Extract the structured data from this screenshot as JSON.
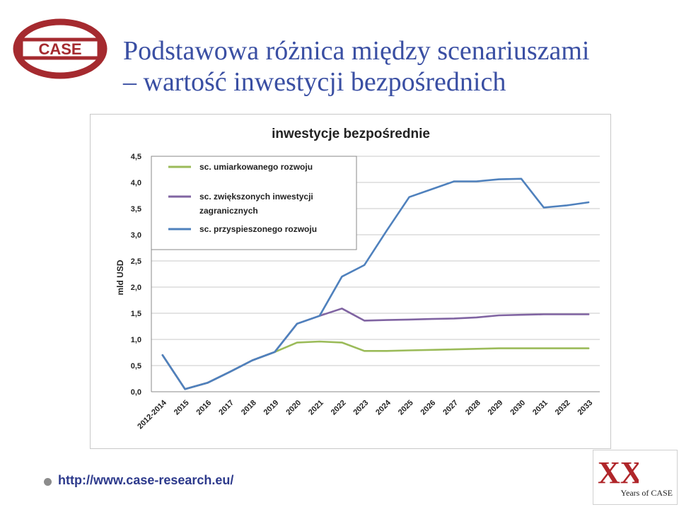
{
  "slide": {
    "title_line1": "Podstawowa różnica między scenariuszami",
    "title_line2": "– wartość inwestycji bezpośrednich",
    "footer_link": "http://www.case-research.eu/",
    "logo_text": "CASE",
    "badge_text": "Years of CASE",
    "badge_mark": "XX",
    "colors": {
      "title": "#3a4fa3",
      "logo": "#a52a2f",
      "link": "#2d3a8c"
    }
  },
  "chart_data": {
    "type": "line",
    "title": "inwestycje bezpośrednie",
    "ylabel": "mld USD",
    "xlabel": "",
    "ylim": [
      0,
      4.5
    ],
    "yticks": [
      "0,0",
      "0,5",
      "1,0",
      "1,5",
      "2,0",
      "2,5",
      "3,0",
      "3,5",
      "4,0",
      "4,5"
    ],
    "grid": true,
    "legend_position": "top-left",
    "categories": [
      "2012-2014",
      "2015",
      "2016",
      "2017",
      "2018",
      "2019",
      "2020",
      "2021",
      "2022",
      "2023",
      "2024",
      "2025",
      "2026",
      "2027",
      "2028",
      "2029",
      "2030",
      "2031",
      "2032",
      "2033"
    ],
    "series": [
      {
        "name": "sc. umiarkowanego rozwoju",
        "color": "#9bbb59",
        "values": [
          0.7,
          0.05,
          0.17,
          0.38,
          0.6,
          0.76,
          0.94,
          0.96,
          0.94,
          0.78,
          0.78,
          0.79,
          0.8,
          0.81,
          0.82,
          0.83,
          0.83,
          0.83,
          0.83,
          0.83
        ]
      },
      {
        "name": "sc. zwiększonych inwestycji zagranicznych",
        "color": "#8064a2",
        "values": [
          0.7,
          0.05,
          0.17,
          0.38,
          0.6,
          0.76,
          1.3,
          1.45,
          1.59,
          1.36,
          1.37,
          1.38,
          1.39,
          1.4,
          1.42,
          1.46,
          1.47,
          1.48,
          1.48,
          1.48
        ]
      },
      {
        "name": "sc. przyspieszonego rozwoju",
        "color": "#4f81bd",
        "values": [
          0.7,
          0.05,
          0.17,
          0.38,
          0.6,
          0.76,
          1.3,
          1.45,
          2.2,
          2.42,
          3.08,
          3.72,
          3.87,
          4.02,
          4.02,
          4.06,
          4.07,
          3.52,
          3.56,
          3.62
        ]
      }
    ]
  }
}
